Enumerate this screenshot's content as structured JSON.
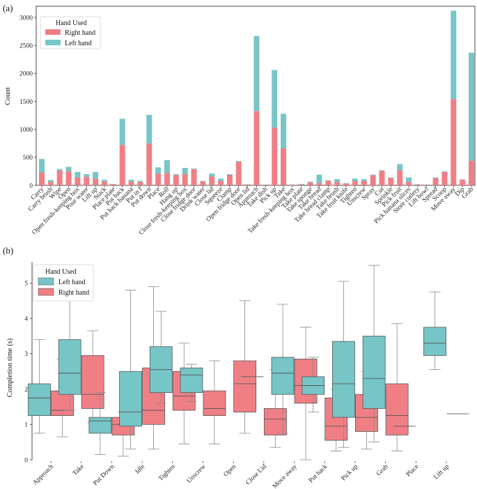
{
  "chart_data": [
    {
      "panel_label": "(a)",
      "type": "bar",
      "stacked": true,
      "ylabel": "Count",
      "ylim": [
        0,
        3200
      ],
      "yticks": [
        0,
        500,
        1000,
        1500,
        2000,
        2500,
        3000
      ],
      "legend": {
        "title": "Hand Used",
        "entries": [
          "Right hand",
          "Left hand"
        ],
        "placement": "top-left"
      },
      "colors": {
        "Right hand": "#f07f85",
        "Left hand": "#76c5c7"
      },
      "categories": [
        "Carry",
        "Carry brush",
        "Wipe",
        "Open",
        "Open fresh-keeping box",
        "Pour water",
        "Lift up",
        "Stack",
        "Place plate",
        "Put back",
        "Put back banana",
        "Put in f",
        "Put down",
        "Place",
        "Roll",
        "Hang up",
        "Close fresh-keeping box",
        "Close fridge door",
        "Drink water",
        "Close lid",
        "Squeeze",
        "Clamp",
        "Open fridge door",
        "Open lid",
        "Approach",
        "Take dish",
        "Pick up",
        "Take",
        "Take fresh-keeping box",
        "Take plate",
        "Take sponge",
        "Take bread",
        "Take bread clamp",
        "Take brush",
        "Take fruit knife",
        "Tighten",
        "Unscrew",
        "Spray",
        "Cut",
        "Sprinkle",
        "Pick fruit",
        "Pick banana slices",
        "Store cutlery",
        "Lift bowl",
        "Spread",
        "Scoop",
        "Move away",
        "Dip",
        "Grab"
      ],
      "series": [
        {
          "name": "Right hand",
          "values": [
            230,
            60,
            265,
            250,
            140,
            150,
            120,
            70,
            20,
            720,
            70,
            60,
            750,
            210,
            220,
            180,
            200,
            290,
            70,
            160,
            80,
            190,
            420,
            15,
            1330,
            10,
            1030,
            660,
            10,
            15,
            50,
            40,
            80,
            60,
            35,
            80,
            80,
            180,
            260,
            130,
            270,
            60,
            15,
            10,
            130,
            240,
            1540,
            100,
            440
          ]
        },
        {
          "name": "Left hand",
          "values": [
            240,
            35,
            25,
            80,
            100,
            50,
            120,
            30,
            5,
            470,
            30,
            20,
            510,
            110,
            230,
            20,
            110,
            10,
            10,
            50,
            40,
            10,
            15,
            5,
            1340,
            5,
            1030,
            620,
            5,
            10,
            15,
            150,
            10,
            50,
            5,
            40,
            30,
            10,
            10,
            10,
            110,
            80,
            5,
            5,
            10,
            10,
            1580,
            5,
            1930
          ]
        }
      ]
    },
    {
      "panel_label": "(b)",
      "type": "box",
      "ylabel": "Completion time (s)",
      "ylim": [
        0,
        5.6
      ],
      "yticks": [
        0,
        1,
        2,
        3,
        4,
        5
      ],
      "legend": {
        "title": "Hand Used",
        "entries": [
          "Left hand",
          "Right hand"
        ],
        "placement": "top-left"
      },
      "colors": {
        "Left hand": "#76c5c7",
        "Right hand": "#f07f85"
      },
      "categories": [
        "Approach",
        "Take",
        "Put Down",
        "Idle",
        "Tighten",
        "Unscrew",
        "Open",
        "Close Lid",
        "Move away",
        "Put back",
        "Pick up",
        "Grab",
        "Place",
        "Lift up"
      ],
      "series": [
        {
          "name": "Left hand",
          "boxes": [
            {
              "min": 0.75,
              "q1": 1.25,
              "median": 1.75,
              "q3": 2.15,
              "max": 3.4
            },
            {
              "min": 1.4,
              "q1": 1.85,
              "median": 2.45,
              "q3": 3.4,
              "max": 4.75
            },
            {
              "min": 0.15,
              "q1": 0.75,
              "median": 1.1,
              "q3": 1.2,
              "max": 1.9
            },
            {
              "min": 0.3,
              "q1": 0.95,
              "median": 1.35,
              "q3": 2.5,
              "max": 4.8
            },
            {
              "min": 1.6,
              "q1": 1.9,
              "median": 2.55,
              "q3": 3.2,
              "max": 4.2
            },
            {
              "min": 1.65,
              "q1": 1.9,
              "median": 2.4,
              "q3": 2.6,
              "max": 2.7
            },
            null,
            {
              "min": 2.35,
              "q1": 2.35,
              "median": 2.35,
              "q3": 2.35,
              "max": 2.35
            },
            {
              "min": 0.75,
              "q1": 1.85,
              "median": 2.45,
              "q3": 2.9,
              "max": 4.4
            },
            {
              "min": 1.35,
              "q1": 1.85,
              "median": 2.1,
              "q3": 2.35,
              "max": 2.9
            },
            {
              "min": 0.35,
              "q1": 1.2,
              "median": 2.15,
              "q3": 3.35,
              "max": 5.05
            },
            {
              "min": 0.5,
              "q1": 1.45,
              "median": 2.3,
              "q3": 3.5,
              "max": 5.5
            },
            {
              "min": 0.95,
              "q1": 0.95,
              "median": 0.95,
              "q3": 0.95,
              "max": 0.95
            },
            {
              "min": 2.55,
              "q1": 2.95,
              "median": 3.3,
              "q3": 3.75,
              "max": 4.75
            }
          ]
        },
        {
          "name": "Right hand",
          "boxes": [
            {
              "min": 0.65,
              "q1": 1.25,
              "median": 1.4,
              "q3": 1.95,
              "max": 2.85
            },
            {
              "min": 1.05,
              "q1": 1.45,
              "median": 1.85,
              "q3": 2.95,
              "max": 3.65
            },
            {
              "min": 0.1,
              "q1": 0.7,
              "median": 1.0,
              "q3": 1.2,
              "max": 1.35
            },
            {
              "min": 0.3,
              "q1": 1.0,
              "median": 1.4,
              "q3": 2.6,
              "max": 4.9
            },
            {
              "min": 0.45,
              "q1": 1.4,
              "median": 1.8,
              "q3": 2.5,
              "max": 3.3
            },
            {
              "min": 0.45,
              "q1": 1.25,
              "median": 1.45,
              "q3": 1.95,
              "max": 2.8
            },
            {
              "min": 0.75,
              "q1": 1.35,
              "median": 2.15,
              "q3": 2.8,
              "max": 4.5
            },
            {
              "min": 0.35,
              "q1": 0.7,
              "median": 1.15,
              "q3": 1.45,
              "max": 2.55
            },
            {
              "min": 0.0,
              "q1": 1.6,
              "median": 2.1,
              "q3": 2.85,
              "max": 3.75
            },
            {
              "min": 0.25,
              "q1": 0.55,
              "median": 0.95,
              "q3": 1.75,
              "max": 2.0
            },
            {
              "min": 0.3,
              "q1": 0.8,
              "median": 1.2,
              "q3": 1.85,
              "max": 2.5
            },
            {
              "min": 0.25,
              "q1": 0.7,
              "median": 1.25,
              "q3": 2.15,
              "max": 3.85
            },
            null,
            {
              "min": 1.3,
              "q1": 1.3,
              "median": 1.3,
              "q3": 1.3,
              "max": 1.3
            }
          ]
        }
      ]
    }
  ]
}
